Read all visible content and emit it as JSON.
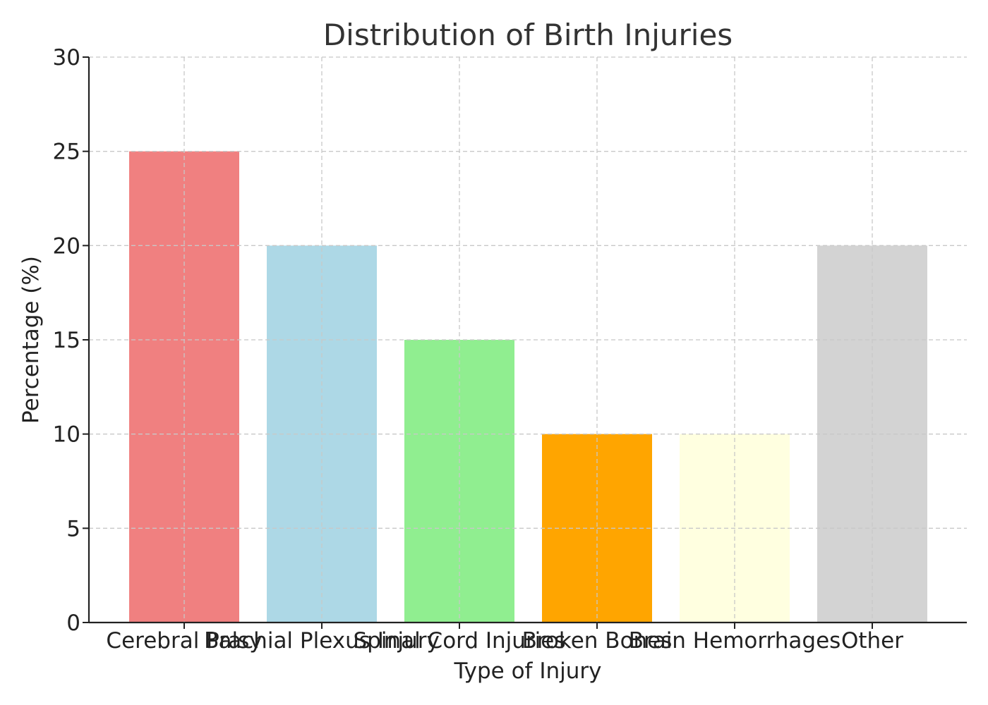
{
  "chart_data": {
    "type": "bar",
    "title": "Distribution of Birth Injuries",
    "xlabel": "Type of Injury",
    "ylabel": "Percentage (%)",
    "categories": [
      "Cerebral Palsy",
      "Brachial Plexus Injury",
      "Spinal Cord Injuries",
      "Broken Bones",
      "Brain Hemorrhages",
      "Other"
    ],
    "values": [
      25,
      20,
      15,
      10,
      10,
      20
    ],
    "colors": [
      "#f08080",
      "#add8e6",
      "#90ee90",
      "#ffa500",
      "#ffffe0",
      "#d3d3d3"
    ],
    "ylim": [
      0,
      30
    ],
    "yticks": [
      0,
      5,
      10,
      15,
      20,
      25,
      30
    ],
    "grid": true,
    "legend": "none"
  }
}
